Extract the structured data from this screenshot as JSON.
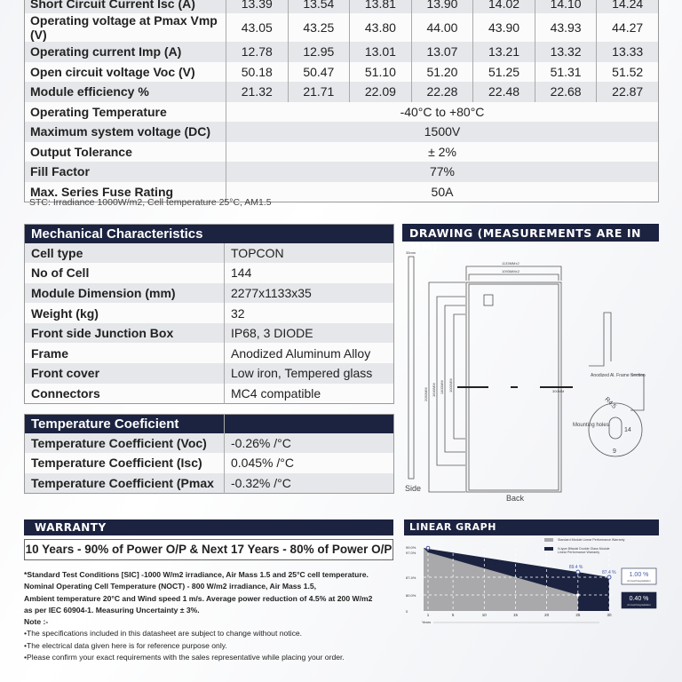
{
  "electrical": {
    "rows": [
      {
        "label": "Short Circuit Current Isc (A)",
        "values": [
          "13.39",
          "13.54",
          "13.81",
          "13.90",
          "14.02",
          "14.10",
          "14.24"
        ]
      },
      {
        "label": "Operating voltage at Pmax Vmp (V)",
        "values": [
          "43.05",
          "43.25",
          "43.80",
          "44.00",
          "43.90",
          "43.93",
          "44.27"
        ]
      },
      {
        "label": "Operating current Imp (A)",
        "values": [
          "12.78",
          "12.95",
          "13.01",
          "13.07",
          "13.21",
          "13.32",
          "13.33"
        ]
      },
      {
        "label": "Open circuit voltage Voc (V)",
        "values": [
          "50.18",
          "50.47",
          "51.10",
          "51.20",
          "51.25",
          "51.31",
          "51.52"
        ]
      },
      {
        "label": "Module efficiency %",
        "values": [
          "21.32",
          "21.71",
          "22.09",
          "22.28",
          "22.48",
          "22.68",
          "22.87"
        ]
      }
    ],
    "common": [
      {
        "label": "Operating Temperature",
        "value": "-40°C to +80°C"
      },
      {
        "label": "Maximum system voltage (DC)",
        "value": "1500V"
      },
      {
        "label": "Output Tolerance",
        "value": "± 2%"
      },
      {
        "label": "Fill Factor",
        "value": "77%"
      },
      {
        "label": "Max. Series Fuse Rating",
        "value": "50A"
      }
    ],
    "stc_note": "STC: Irradiance 1000W/m2, Cell temperature 25°C, AM1.5"
  },
  "mechanical": {
    "title": "Mechanical Characteristics",
    "rows": [
      {
        "label": "Cell type",
        "value": "TOPCON"
      },
      {
        "label": "No of Cell",
        "value": "144"
      },
      {
        "label": "Module Dimension (mm)",
        "value": "2277x1133x35"
      },
      {
        "label": "Weight (kg)",
        "value": "32"
      },
      {
        "label": "Front side Junction Box",
        "value": "IP68, 3 DIODE"
      },
      {
        "label": "Frame",
        "value": "Anodized Aluminum Alloy"
      },
      {
        "label": "Front cover",
        "value": "Low iron, Tempered glass"
      },
      {
        "label": "Connectors",
        "value": "MC4 compatible"
      }
    ]
  },
  "temperature": {
    "title": "Temperature Coeficient",
    "rows": [
      {
        "label": "Temperature Coefficient (Voc)",
        "value": "-0.26% /°C"
      },
      {
        "label": "Temperature Coefficient (Isc)",
        "value": "0.045% /°C"
      },
      {
        "label": "Temperature Coefficient (Pmax",
        "value": "-0.32% /°C"
      }
    ]
  },
  "drawing": {
    "title": "DRAWING (MEASUREMENTS ARE IN MM)",
    "side_width": "35mm",
    "width_outer": "1133MM±2",
    "width_inner": "1093MM±2",
    "heights": [
      "2050MM",
      "1640MM",
      "1400MM",
      "1000MM"
    ],
    "cable": "300MM",
    "side_label": "Side",
    "back_label": "Back",
    "frame_section": "Anodized Al. Frame Section",
    "frame_dims": [
      "4.5",
      "33",
      "35"
    ],
    "mounting": "Mounting holes",
    "radius": "R4.5",
    "hole_h": "14",
    "hole_w": "9"
  },
  "warranty": {
    "title": "WARRANTY",
    "statement": "10 Years - 90% of Power O/P & Next 17 Years - 80% of Power O/P",
    "notes_bold": [
      "*Standard Test Conditions [SIC] -1000 W/m2 irradiance, Air Mass 1.5 and 25°C cell temperature.",
      "Nominal Operating Cell Temperature (NOCT) - 800 W/m2 irradiance, Air Mass 1.5,",
      "Ambient temperature 20°C and Wind speed 1 m/s. Average power reduction of 4.5% at 200 W/m2",
      "as per IEC 60904-1. Measuring Uncertainty ± 3%."
    ],
    "note_label": "Note :-",
    "notes": [
      "•The specifications included in this datasheet are subject to change without notice.",
      "•The electrical data given here is for reference purpose only.",
      "•Please confirm your exact requirements  with  the sales representative while placing your order."
    ]
  },
  "chart_data": {
    "type": "area",
    "title": "LINEAR GRAPH",
    "xlabel": "Years",
    "x_ticks": [
      "1",
      "5",
      "10",
      "15",
      "20",
      "25",
      "30"
    ],
    "y_ticks": [
      "99.0%",
      "97.0%",
      "87.4%",
      "80.0%",
      "0"
    ],
    "series": [
      {
        "name": "Standard Module Linear Performance Warranty",
        "color": "#a9a9ab",
        "points": [
          [
            0,
            99
          ],
          [
            1,
            97
          ],
          [
            25,
            80
          ]
        ]
      },
      {
        "name": "N-type Bifacial Double Glass Module Linear Performance Warranty",
        "color": "#1c2340",
        "points": [
          [
            0,
            99
          ],
          [
            1,
            98.6
          ],
          [
            25,
            89.4
          ],
          [
            30,
            87.4
          ]
        ]
      }
    ],
    "annotations": [
      "89.4 %",
      "87.4 %"
    ],
    "degradation": [
      {
        "value": "1.00 %",
        "label": "Annual Degradation"
      },
      {
        "value": "0.40 %",
        "label": "Annual Degradation"
      }
    ]
  }
}
